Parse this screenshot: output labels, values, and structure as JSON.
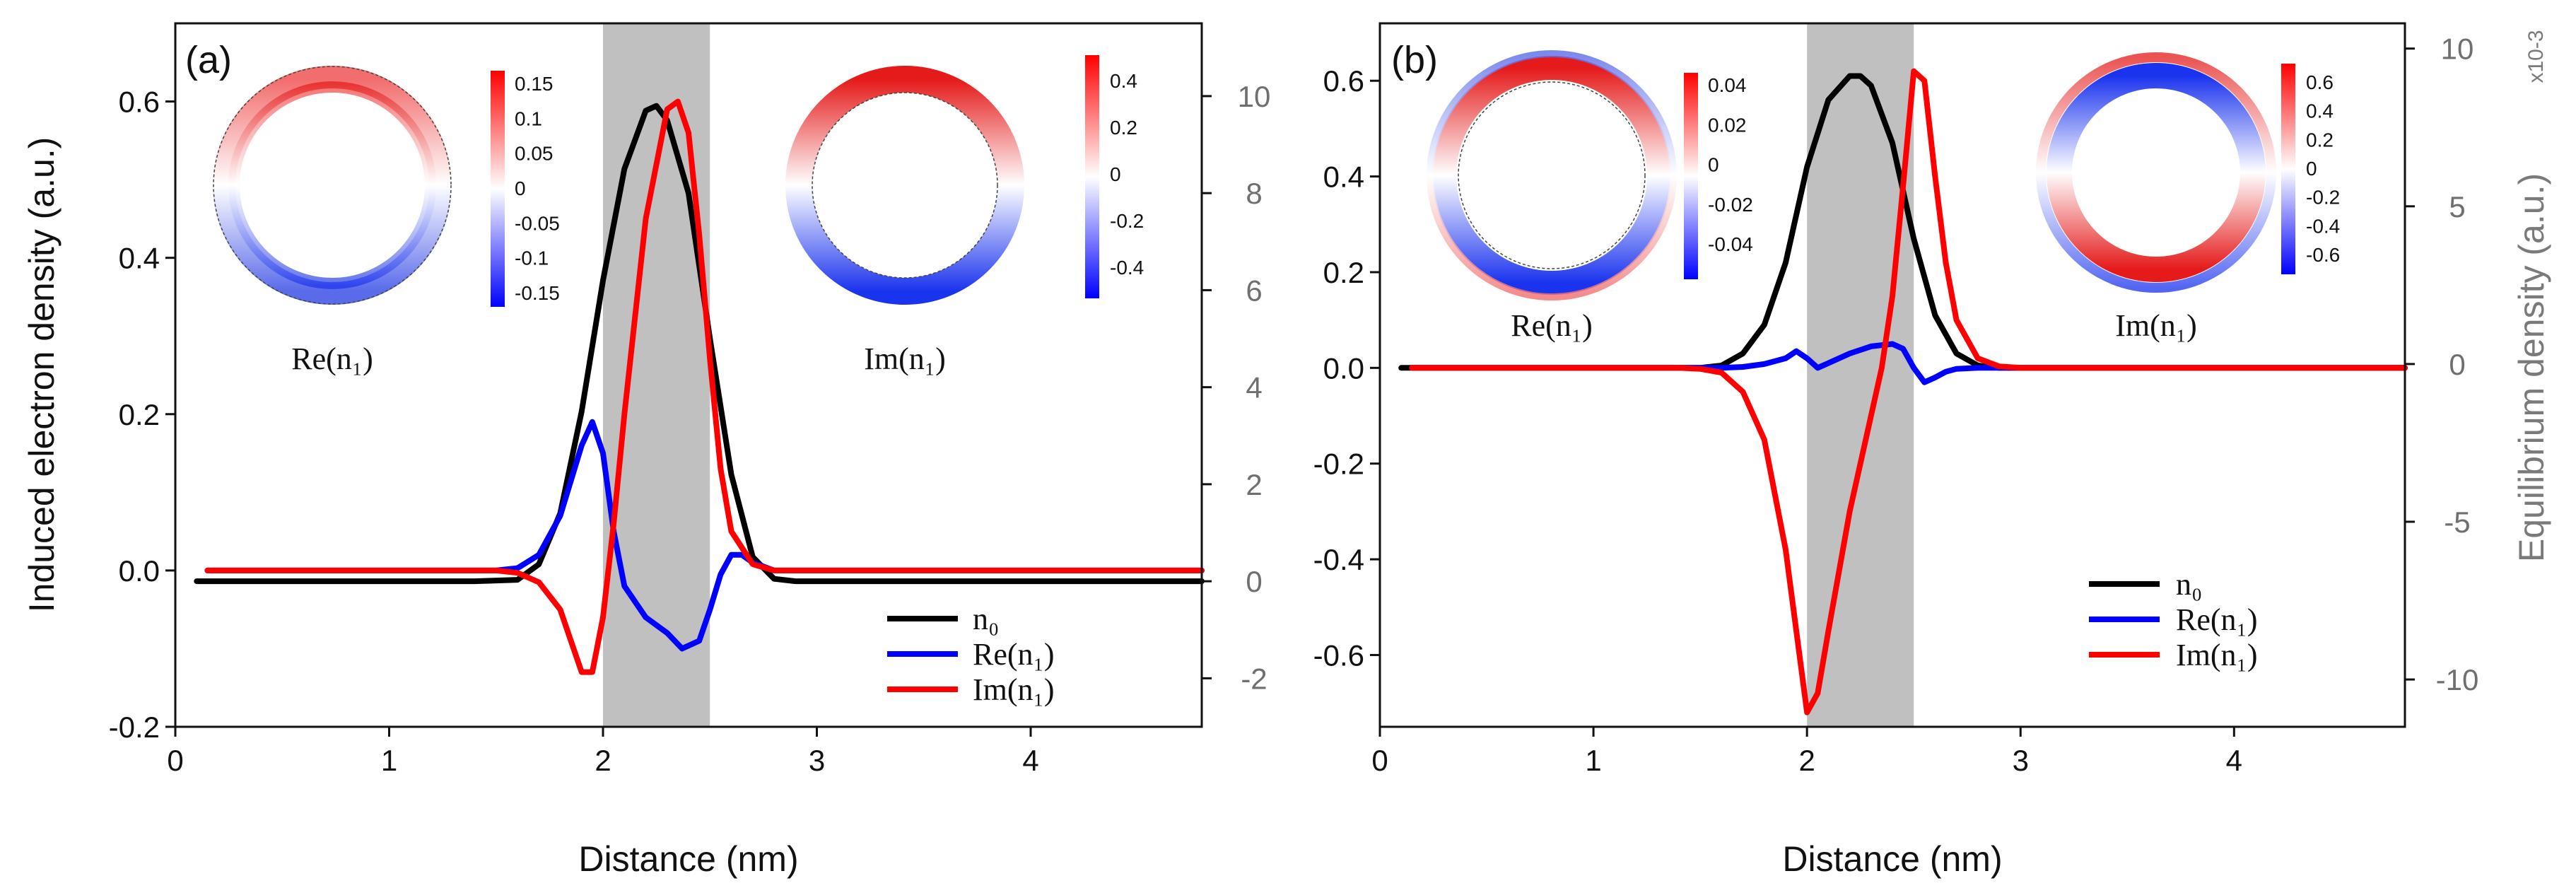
{
  "chart_data": [
    {
      "type": "line",
      "panel_label": "(a)",
      "xlabel": "Distance (nm)",
      "ylabel": "Induced electron density (a.u.)",
      "y2label": "",
      "y2exponent": "",
      "xlim": [
        0,
        4.8
      ],
      "ylim": [
        -0.2,
        0.7
      ],
      "y2lim": [
        -3,
        11.5
      ],
      "xticks": [
        "0",
        "1",
        "2",
        "3",
        "4"
      ],
      "yticks": [
        "-0.2",
        "0.0",
        "0.2",
        "0.4",
        "0.6"
      ],
      "y2ticks": [
        "-2",
        "0",
        "2",
        "4",
        "6",
        "8",
        "10"
      ],
      "shaded_region": [
        2.0,
        2.5
      ],
      "series": [
        {
          "name": "n0",
          "label": "n₀",
          "color": "#000000",
          "axis": "right",
          "x": [
            0.1,
            1.4,
            1.6,
            1.7,
            1.8,
            1.9,
            2.0,
            2.1,
            2.2,
            2.25,
            2.3,
            2.4,
            2.5,
            2.6,
            2.7,
            2.8,
            2.9,
            3.0,
            4.8
          ],
          "y": [
            0,
            0,
            0.03,
            0.35,
            1.4,
            3.5,
            6.2,
            8.5,
            9.7,
            9.8,
            9.5,
            8.0,
            5.0,
            2.2,
            0.5,
            0.05,
            0,
            0,
            0
          ]
        },
        {
          "name": "re_n1",
          "label": "Re(n₁)",
          "color": "#0000ff",
          "axis": "left",
          "x": [
            0.15,
            1.5,
            1.6,
            1.7,
            1.8,
            1.9,
            1.95,
            2.0,
            2.05,
            2.1,
            2.2,
            2.3,
            2.37,
            2.45,
            2.5,
            2.55,
            2.6,
            2.65,
            2.7,
            2.8,
            2.9,
            3.0,
            4.8
          ],
          "y": [
            0,
            0,
            0.003,
            0.02,
            0.07,
            0.16,
            0.19,
            0.15,
            0.05,
            -0.02,
            -0.06,
            -0.08,
            -0.1,
            -0.09,
            -0.05,
            -0.005,
            0.02,
            0.02,
            0.01,
            0,
            0,
            0,
            0
          ]
        },
        {
          "name": "im_n1",
          "label": "Im(n₁)",
          "color": "#ff0000",
          "axis": "left",
          "x": [
            0.15,
            1.5,
            1.6,
            1.7,
            1.8,
            1.85,
            1.9,
            1.95,
            2.0,
            2.05,
            2.1,
            2.2,
            2.3,
            2.35,
            2.4,
            2.45,
            2.5,
            2.55,
            2.6,
            2.7,
            2.8,
            2.9,
            3.0,
            4.8
          ],
          "y": [
            0,
            0,
            -0.003,
            -0.015,
            -0.05,
            -0.09,
            -0.13,
            -0.13,
            -0.06,
            0.06,
            0.2,
            0.45,
            0.59,
            0.6,
            0.56,
            0.43,
            0.27,
            0.13,
            0.05,
            0.008,
            0,
            0,
            0,
            0
          ]
        }
      ],
      "insets": [
        {
          "caption": "Re(n₁)",
          "pattern": "dipole-horizontal",
          "colorbar_ticks": [
            "0.15",
            "0.1",
            "0.05",
            "0",
            "-0.05",
            "-0.1",
            "-0.15"
          ]
        },
        {
          "caption": "Im(n₁)",
          "pattern": "dipole-horizontal-strong",
          "colorbar_ticks": [
            "0.4",
            "0.2",
            "0",
            "-0.2",
            "-0.4"
          ]
        }
      ]
    },
    {
      "type": "line",
      "panel_label": "(b)",
      "xlabel": "Distance (nm)",
      "ylabel": "",
      "y2label": "Equilibrium density (a.u.)",
      "y2exponent": "x10-3",
      "xlim": [
        0,
        4.8
      ],
      "ylim": [
        -0.75,
        0.72
      ],
      "y2lim": [
        -11.5,
        10.8
      ],
      "xticks": [
        "0",
        "1",
        "2",
        "3",
        "4"
      ],
      "yticks": [
        "-0.6",
        "-0.4",
        "-0.2",
        "0.0",
        "0.2",
        "0.4",
        "0.6"
      ],
      "y2ticks": [
        "-10",
        "-5",
        "0",
        "5",
        "10"
      ],
      "shaded_region": [
        2.0,
        2.5
      ],
      "series": [
        {
          "name": "n0",
          "label": "n₀",
          "color": "#000000",
          "axis": "left",
          "x": [
            0.1,
            1.5,
            1.6,
            1.7,
            1.8,
            1.9,
            2.0,
            2.1,
            2.2,
            2.25,
            2.3,
            2.4,
            2.5,
            2.6,
            2.7,
            2.8,
            2.9,
            3.0,
            4.8
          ],
          "y": [
            0,
            0,
            0.005,
            0.03,
            0.09,
            0.22,
            0.42,
            0.56,
            0.61,
            0.61,
            0.59,
            0.47,
            0.27,
            0.11,
            0.03,
            0.005,
            0,
            0,
            0
          ]
        },
        {
          "name": "re_n1",
          "label": "Re(n₁)",
          "color": "#0000ff",
          "axis": "left",
          "x": [
            0.15,
            1.6,
            1.7,
            1.8,
            1.9,
            1.95,
            2.0,
            2.05,
            2.1,
            2.2,
            2.3,
            2.4,
            2.45,
            2.5,
            2.55,
            2.6,
            2.65,
            2.7,
            2.8,
            3.0,
            4.8
          ],
          "y": [
            0,
            0,
            0.002,
            0.008,
            0.02,
            0.035,
            0.02,
            0.0,
            0.01,
            0.03,
            0.045,
            0.05,
            0.04,
            0.0,
            -0.03,
            -0.02,
            -0.008,
            -0.002,
            0,
            0,
            0
          ]
        },
        {
          "name": "im_n1",
          "label": "Im(n₁)",
          "color": "#ff0000",
          "axis": "left",
          "x": [
            0.15,
            1.4,
            1.5,
            1.6,
            1.7,
            1.8,
            1.9,
            1.95,
            2.0,
            2.05,
            2.1,
            2.2,
            2.3,
            2.35,
            2.4,
            2.45,
            2.5,
            2.55,
            2.6,
            2.65,
            2.7,
            2.8,
            2.9,
            3.0,
            4.8
          ],
          "y": [
            0,
            0,
            -0.002,
            -0.01,
            -0.05,
            -0.15,
            -0.38,
            -0.55,
            -0.72,
            -0.68,
            -0.55,
            -0.3,
            -0.1,
            0.0,
            0.15,
            0.38,
            0.62,
            0.6,
            0.4,
            0.22,
            0.1,
            0.02,
            0.003,
            0,
            0
          ]
        }
      ],
      "insets": [
        {
          "caption": "Re(n₁)",
          "pattern": "dipole-vertical-thin",
          "colorbar_ticks": [
            "0.04",
            "0.02",
            "0",
            "-0.02",
            "-0.04"
          ]
        },
        {
          "caption": "Im(n₁)",
          "pattern": "dipole-vertical",
          "colorbar_ticks": [
            "0.6",
            "0.4",
            "0.2",
            "0",
            "-0.2",
            "-0.4",
            "-0.6"
          ]
        }
      ]
    }
  ],
  "colors": {
    "shade": "#c0c0c0",
    "positive": "#ff0000",
    "negative": "#0000ff",
    "right_axis": "#7a7a7a"
  }
}
